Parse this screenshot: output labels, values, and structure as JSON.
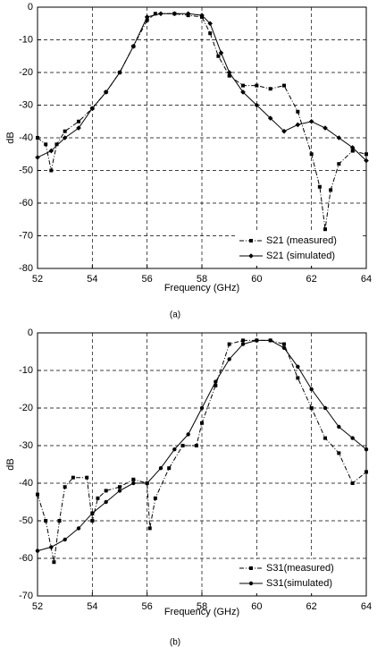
{
  "chart_data": [
    {
      "type": "line",
      "caption": "(a)",
      "x_label": "Frequency (GHz)",
      "y_label": "dB",
      "xlim": [
        52,
        64
      ],
      "xticks": [
        52,
        54,
        56,
        58,
        60,
        62,
        64
      ],
      "ylim": [
        -80,
        0
      ],
      "yticks": [
        -80,
        -70,
        -60,
        -50,
        -40,
        -30,
        -20,
        -10,
        0
      ],
      "grid": true,
      "legend": "lower right",
      "series": [
        {
          "name": "S21 (measured)",
          "color": "#000000",
          "marker": "square",
          "line_style": "dashed",
          "x": [
            52,
            52.3,
            52.5,
            52.7,
            53,
            53.5,
            54,
            54.5,
            55,
            55.5,
            56,
            56.3,
            57,
            57.5,
            58,
            58.3,
            58.6,
            59,
            59.5,
            60,
            60.5,
            61,
            61.5,
            62,
            62.3,
            62.5,
            62.7,
            63,
            63.5,
            64
          ],
          "values": [
            -40,
            -42,
            -50,
            -42,
            -38,
            -35,
            -31,
            -26,
            -20,
            -12,
            -4,
            -2,
            -2,
            -2.5,
            -3,
            -8,
            -15,
            -21,
            -24,
            -24,
            -25,
            -24,
            -32,
            -45,
            -55,
            -68,
            -56,
            -48,
            -44,
            -45
          ]
        },
        {
          "name": "S21 (simulated)",
          "color": "#000000",
          "marker": "diamond",
          "line_style": "solid",
          "x": [
            52,
            52.5,
            53,
            53.5,
            54,
            54.5,
            55,
            55.5,
            56,
            56.5,
            57,
            57.5,
            58,
            58.3,
            58.7,
            59,
            59.5,
            60,
            60.5,
            61,
            61.5,
            62,
            62.5,
            63,
            63.5,
            64
          ],
          "values": [
            -46,
            -44,
            -40,
            -37,
            -31,
            -26,
            -20,
            -12,
            -3,
            -2,
            -2,
            -2,
            -2.5,
            -5,
            -14,
            -20,
            -26,
            -30,
            -34,
            -38,
            -36,
            -35,
            -37,
            -40,
            -43,
            -47
          ]
        }
      ]
    },
    {
      "type": "line",
      "caption": "(b)",
      "x_label": "Frequency (GHz)",
      "y_label": "dB",
      "xlim": [
        52,
        64
      ],
      "xticks": [
        52,
        54,
        56,
        58,
        60,
        62,
        64
      ],
      "ylim": [
        -70,
        0
      ],
      "yticks": [
        -70,
        -60,
        -50,
        -40,
        -30,
        -20,
        -10,
        0
      ],
      "grid": true,
      "legend": "lower right",
      "series": [
        {
          "name": "S31(measured)",
          "color": "#000000",
          "marker": "square",
          "line_style": "dashed",
          "x": [
            52,
            52.3,
            52.6,
            52.8,
            53,
            53.3,
            53.8,
            54,
            54.2,
            54.5,
            55,
            55.5,
            56,
            56.1,
            56.3,
            56.8,
            57.3,
            57.8,
            58,
            58.5,
            59,
            59.5,
            60,
            60.5,
            61,
            61.5,
            62,
            62.5,
            63,
            63.5,
            64
          ],
          "values": [
            -43,
            -50,
            -61,
            -50,
            -41,
            -38.5,
            -38.5,
            -50,
            -44,
            -42,
            -41,
            -39,
            -40,
            -52,
            -44,
            -36,
            -30,
            -30,
            -24,
            -14,
            -3,
            -2,
            -2,
            -2,
            -3,
            -12,
            -20,
            -28,
            -32,
            -40,
            -37
          ]
        },
        {
          "name": "S31(simulated)",
          "color": "#000000",
          "marker": "circle",
          "line_style": "solid",
          "x": [
            52,
            52.5,
            53,
            53.5,
            54,
            54.5,
            55,
            55.5,
            56,
            56.5,
            57,
            57.5,
            58,
            58.5,
            59,
            59.5,
            60,
            60.5,
            61,
            61.5,
            62,
            62.5,
            63,
            63.5,
            64
          ],
          "values": [
            -58,
            -57,
            -55,
            -52,
            -48,
            -45,
            -42,
            -40,
            -40,
            -36,
            -31,
            -27,
            -20,
            -13,
            -7,
            -3,
            -2,
            -2,
            -4,
            -9,
            -15,
            -20,
            -25,
            -28,
            -31
          ]
        }
      ]
    }
  ]
}
